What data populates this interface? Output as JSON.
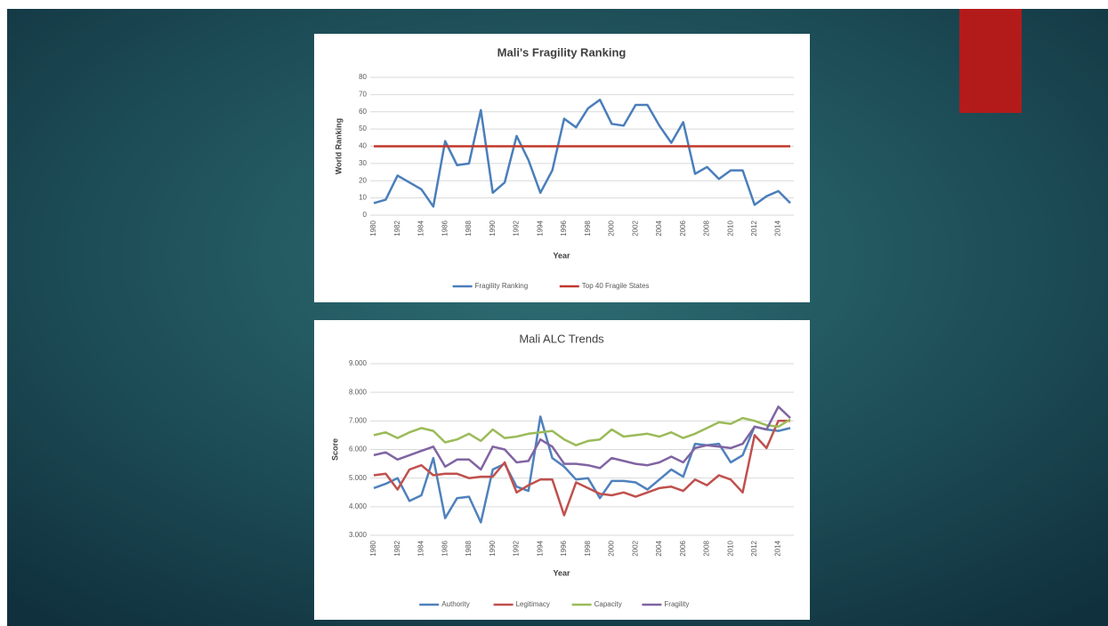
{
  "chart_data": [
    {
      "type": "line",
      "title": "Mali's Fragility Ranking",
      "x_label": "Year",
      "y_label": "World Ranking",
      "categories": [
        "1980",
        null,
        "1982",
        null,
        "1984",
        null,
        "1986",
        null,
        "1988",
        null,
        "1990",
        null,
        "1992",
        null,
        "1994",
        null,
        "1996",
        null,
        "1998",
        null,
        "2000",
        null,
        "2002",
        null,
        "2004",
        null,
        "2006",
        null,
        "2008",
        null,
        "2010",
        null,
        "2012",
        null,
        "2014",
        null
      ],
      "series": [
        {
          "name": "Fragility Ranking",
          "color": "#4a7ebb",
          "values": [
            7,
            9,
            23,
            19,
            15,
            5,
            43,
            29,
            30,
            61,
            13,
            19,
            46,
            32,
            13,
            26,
            56,
            51,
            62,
            67,
            53,
            52,
            64,
            64,
            52,
            42,
            54,
            24,
            28,
            21,
            26,
            26,
            6,
            11,
            14,
            7
          ]
        },
        {
          "name": "Top 40 Fragile States",
          "color": "#c0392b",
          "values": [
            40,
            40,
            40,
            40,
            40,
            40,
            40,
            40,
            40,
            40,
            40,
            40,
            40,
            40,
            40,
            40,
            40,
            40,
            40,
            40,
            40,
            40,
            40,
            40,
            40,
            40,
            40,
            40,
            40,
            40,
            40,
            40,
            40,
            40,
            40,
            40
          ]
        }
      ],
      "ylim": [
        0,
        80
      ],
      "yticks": [
        0,
        10,
        20,
        30,
        40,
        50,
        60,
        70,
        80
      ],
      "grid": true,
      "legend": "bottom"
    },
    {
      "type": "line",
      "title": "Mali ALC Trends",
      "x_label": "Year",
      "y_label": "Score",
      "categories": [
        "1980",
        null,
        "1982",
        null,
        "1984",
        null,
        "1986",
        null,
        "1988",
        null,
        "1990",
        null,
        "1992",
        null,
        "1994",
        null,
        "1996",
        null,
        "1998",
        null,
        "2000",
        null,
        "2002",
        null,
        "2004",
        null,
        "2006",
        null,
        "2008",
        null,
        "2010",
        null,
        "2012",
        null,
        "2014",
        null
      ],
      "series": [
        {
          "name": "Authority",
          "color": "#4f81bd",
          "values": [
            4.65,
            4.8,
            5.0,
            4.2,
            4.4,
            5.7,
            3.6,
            4.3,
            4.35,
            3.45,
            5.3,
            5.5,
            4.7,
            4.55,
            7.15,
            5.7,
            5.4,
            4.95,
            5.0,
            4.3,
            4.9,
            4.9,
            4.85,
            4.6,
            4.95,
            5.3,
            5.05,
            6.2,
            6.15,
            6.2,
            5.55,
            5.8,
            6.8,
            6.7,
            6.65,
            6.75
          ]
        },
        {
          "name": "Legitimacy",
          "color": "#c0504d",
          "values": [
            5.1,
            5.15,
            4.6,
            5.3,
            5.45,
            5.1,
            5.15,
            5.15,
            5.0,
            5.05,
            5.05,
            5.55,
            4.5,
            4.75,
            4.95,
            4.95,
            3.7,
            4.85,
            4.65,
            4.45,
            4.4,
            4.5,
            4.35,
            4.5,
            4.65,
            4.7,
            4.55,
            4.95,
            4.75,
            5.1,
            4.95,
            4.5,
            6.5,
            6.05,
            7.0,
            7.0
          ]
        },
        {
          "name": "Capacity",
          "color": "#9bbb59",
          "values": [
            6.5,
            6.6,
            6.4,
            6.6,
            6.75,
            6.65,
            6.25,
            6.35,
            6.55,
            6.3,
            6.7,
            6.4,
            6.45,
            6.55,
            6.6,
            6.65,
            6.35,
            6.15,
            6.3,
            6.35,
            6.7,
            6.45,
            6.5,
            6.55,
            6.45,
            6.6,
            6.4,
            6.55,
            6.75,
            6.95,
            6.9,
            7.1,
            7.0,
            6.85,
            6.8,
            7.05
          ]
        },
        {
          "name": "Fragility",
          "color": "#8064a2",
          "values": [
            5.8,
            5.9,
            5.65,
            5.8,
            5.95,
            6.1,
            5.4,
            5.65,
            5.65,
            5.3,
            6.1,
            6.0,
            5.55,
            5.6,
            6.35,
            6.1,
            5.5,
            5.5,
            5.45,
            5.35,
            5.7,
            5.6,
            5.5,
            5.45,
            5.55,
            5.75,
            5.55,
            6.05,
            6.15,
            6.1,
            6.05,
            6.2,
            6.8,
            6.7,
            7.5,
            7.1
          ]
        }
      ],
      "ylim": [
        3,
        9
      ],
      "yticks": [
        {
          "value": 3,
          "label": "3.000"
        },
        {
          "value": 4,
          "label": "4.000"
        },
        {
          "value": 5,
          "label": "5.000"
        },
        {
          "value": 6,
          "label": "6.000"
        },
        {
          "value": 7,
          "label": "7.000"
        },
        {
          "value": 8,
          "label": "8.000"
        },
        {
          "value": 9,
          "label": "9.000"
        }
      ],
      "grid": true,
      "legend": "bottom"
    }
  ]
}
